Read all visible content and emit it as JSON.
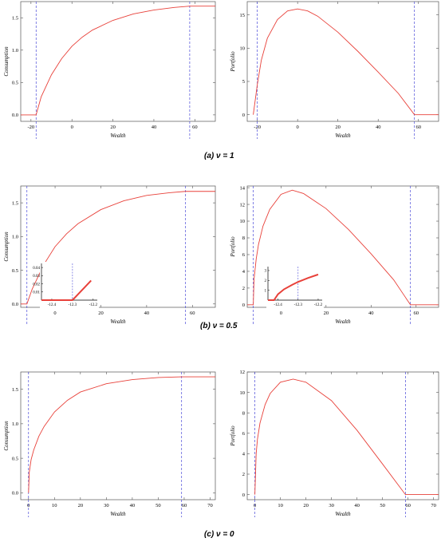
{
  "captions": [
    {
      "letter": "(a)",
      "text": "ν = 1"
    },
    {
      "letter": "(b)",
      "text": "ν = 0.5"
    },
    {
      "letter": "(c)",
      "text": "ν = 0"
    }
  ],
  "chart_data": [
    {
      "type": "line",
      "id": "a-consumption",
      "xlabel": "Wealth",
      "ylabel": "Consumption",
      "xlim": [
        -25,
        70
      ],
      "ylim": [
        -0.1,
        1.75
      ],
      "xticks": [
        -20,
        0,
        20,
        40,
        60
      ],
      "yticks": [
        0.0,
        0.5,
        1.0,
        1.5
      ],
      "vlines": [
        -17.5,
        57.5
      ],
      "series": [
        {
          "x": [
            -25,
            -17.5,
            -15,
            -10,
            -5,
            0,
            5,
            10,
            20,
            30,
            40,
            50,
            57.5,
            70
          ],
          "y": [
            0,
            0,
            0.28,
            0.62,
            0.87,
            1.06,
            1.2,
            1.31,
            1.46,
            1.56,
            1.62,
            1.66,
            1.68,
            1.68
          ]
        }
      ],
      "color": "#e8413a"
    },
    {
      "type": "line",
      "id": "a-portfolio",
      "xlabel": "Wealth",
      "ylabel": "Portfolio",
      "xlim": [
        -25,
        70
      ],
      "ylim": [
        -1,
        17
      ],
      "xticks": [
        -20,
        0,
        20,
        40,
        60
      ],
      "yticks": [
        0,
        5,
        10,
        15
      ],
      "vlines": [
        -20,
        58
      ],
      "series": [
        {
          "x": [
            -22,
            -20,
            -18,
            -15,
            -10,
            -5,
            0,
            5,
            10,
            20,
            30,
            40,
            50,
            58,
            70
          ],
          "y": [
            0,
            4.5,
            8.2,
            11.5,
            14.3,
            15.6,
            15.9,
            15.6,
            14.8,
            12.4,
            9.5,
            6.4,
            3.2,
            0,
            0
          ]
        }
      ],
      "color": "#e8413a"
    },
    {
      "type": "line",
      "id": "b-consumption",
      "xlabel": "Wealth",
      "ylabel": "Consumption",
      "xlim": [
        -15,
        70
      ],
      "ylim": [
        -0.05,
        1.75
      ],
      "xticks": [
        0,
        20,
        40,
        60
      ],
      "yticks": [
        0.0,
        0.5,
        1.0,
        1.5
      ],
      "vlines": [
        -12.3,
        57
      ],
      "series": [
        {
          "x": [
            -15,
            -12.3,
            -10,
            -5,
            0,
            5,
            10,
            20,
            30,
            40,
            50,
            57,
            70
          ],
          "y": [
            0,
            0,
            0.22,
            0.58,
            0.85,
            1.04,
            1.19,
            1.4,
            1.53,
            1.61,
            1.65,
            1.67,
            1.67
          ]
        }
      ],
      "color": "#e8413a",
      "inset": {
        "xlim": [
          -12.45,
          -12.18
        ],
        "ylim": [
          0,
          0.045
        ],
        "xticks": [
          -12.4,
          -12.3,
          -12.2
        ],
        "yticks": [
          0.01,
          0.02,
          0.03,
          0.04
        ],
        "vline": -12.3,
        "x": [
          -12.45,
          -12.3,
          -12.27,
          -12.24,
          -12.21
        ],
        "y": [
          0,
          0,
          0.008,
          0.016,
          0.024
        ]
      }
    },
    {
      "type": "line",
      "id": "b-portfolio",
      "xlabel": "Wealth",
      "ylabel": "Portfolio",
      "xlim": [
        -15,
        70
      ],
      "ylim": [
        -0.3,
        14.2
      ],
      "xticks": [
        0,
        20,
        40,
        60
      ],
      "yticks": [
        0,
        2,
        4,
        6,
        8,
        10,
        12,
        14
      ],
      "vlines": [
        -12.3,
        57.5
      ],
      "series": [
        {
          "x": [
            -15,
            -12.3,
            -12,
            -11,
            -10,
            -8,
            -5,
            0,
            5,
            10,
            20,
            30,
            40,
            50,
            57.5,
            70
          ],
          "y": [
            0,
            0,
            3.0,
            5.5,
            7.2,
            9.4,
            11.4,
            13.2,
            13.7,
            13.3,
            11.5,
            9.0,
            6.1,
            3.0,
            0,
            0
          ]
        }
      ],
      "color": "#e8413a",
      "inset": {
        "xlim": [
          -12.45,
          -12.18
        ],
        "ylim": [
          0,
          3.4
        ],
        "xticks": [
          -12.4,
          -12.3,
          -12.2
        ],
        "yticks": [
          1,
          2,
          3
        ],
        "vline": -12.3,
        "x": [
          -12.45,
          -12.42,
          -12.4,
          -12.37,
          -12.33,
          -12.3,
          -12.25,
          -12.2
        ],
        "y": [
          0,
          0,
          0.6,
          1.1,
          1.55,
          1.85,
          2.25,
          2.6
        ]
      }
    },
    {
      "type": "line",
      "id": "c-consumption",
      "xlabel": "Wealth",
      "ylabel": "Consumption",
      "xlim": [
        -3,
        72
      ],
      "ylim": [
        -0.1,
        1.75
      ],
      "xticks": [
        0,
        10,
        20,
        30,
        40,
        50,
        60,
        70
      ],
      "yticks": [
        0.0,
        0.5,
        1.0,
        1.5
      ],
      "vlines": [
        0,
        59
      ],
      "series": [
        {
          "x": [
            0,
            0.3,
            1,
            2,
            4,
            6,
            10,
            15,
            20,
            30,
            40,
            50,
            59,
            72
          ],
          "y": [
            0,
            0.3,
            0.48,
            0.62,
            0.82,
            0.96,
            1.17,
            1.34,
            1.46,
            1.58,
            1.64,
            1.67,
            1.68,
            1.68
          ]
        }
      ],
      "color": "#e8413a"
    },
    {
      "type": "line",
      "id": "c-portfolio",
      "xlabel": "Wealth",
      "ylabel": "Portfolio",
      "xlim": [
        -3,
        72
      ],
      "ylim": [
        -0.5,
        12
      ],
      "xticks": [
        0,
        10,
        20,
        30,
        40,
        50,
        60,
        70
      ],
      "yticks": [
        0,
        2,
        4,
        6,
        8,
        10,
        12
      ],
      "vlines": [
        0,
        59
      ],
      "series": [
        {
          "x": [
            0,
            0.5,
            1,
            2,
            4,
            6,
            10,
            15,
            20,
            30,
            40,
            50,
            59,
            72
          ],
          "y": [
            0,
            4.0,
            5.4,
            7.0,
            8.8,
            9.9,
            11.0,
            11.3,
            11.0,
            9.2,
            6.3,
            3.0,
            0,
            0
          ]
        }
      ],
      "color": "#e8413a"
    }
  ]
}
